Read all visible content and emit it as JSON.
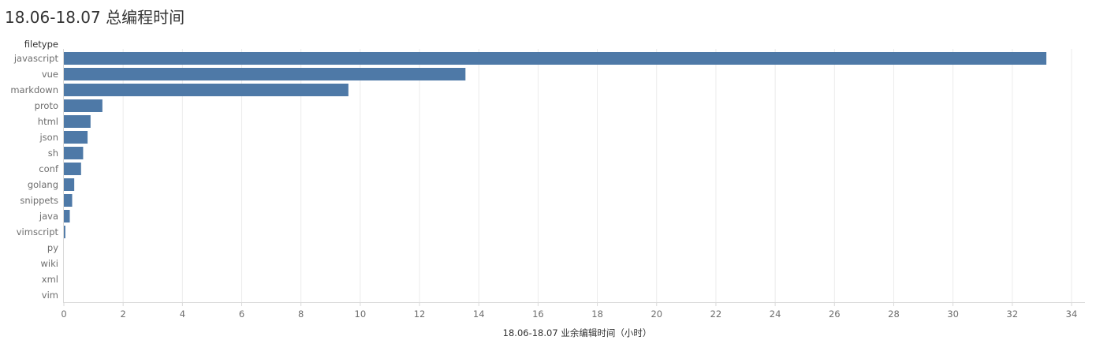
{
  "page_title": "18.06-18.07 总编程时间",
  "chart_data": {
    "type": "bar",
    "orientation": "horizontal",
    "title": "18.06-18.07 总编程时间",
    "ylabel": "filetype",
    "xlabel": "18.06-18.07 业余编辑时间（小时）",
    "categories": [
      "javascript",
      "vue",
      "markdown",
      "proto",
      "html",
      "json",
      "sh",
      "conf",
      "golang",
      "snippets",
      "java",
      "vimscript",
      "py",
      "wiki",
      "xml",
      "vim"
    ],
    "values": [
      33.15,
      13.55,
      9.6,
      1.3,
      0.9,
      0.8,
      0.65,
      0.58,
      0.35,
      0.28,
      0.2,
      0.05,
      0.0,
      0.0,
      0.0,
      0.0
    ],
    "xlim": [
      0,
      34.6
    ],
    "xticks": [
      0,
      2,
      4,
      6,
      8,
      10,
      12,
      14,
      16,
      18,
      20,
      22,
      24,
      26,
      28,
      30,
      32,
      34
    ],
    "grid": true,
    "bar_color": "#4e79a7",
    "grid_color": "#ebebeb"
  }
}
